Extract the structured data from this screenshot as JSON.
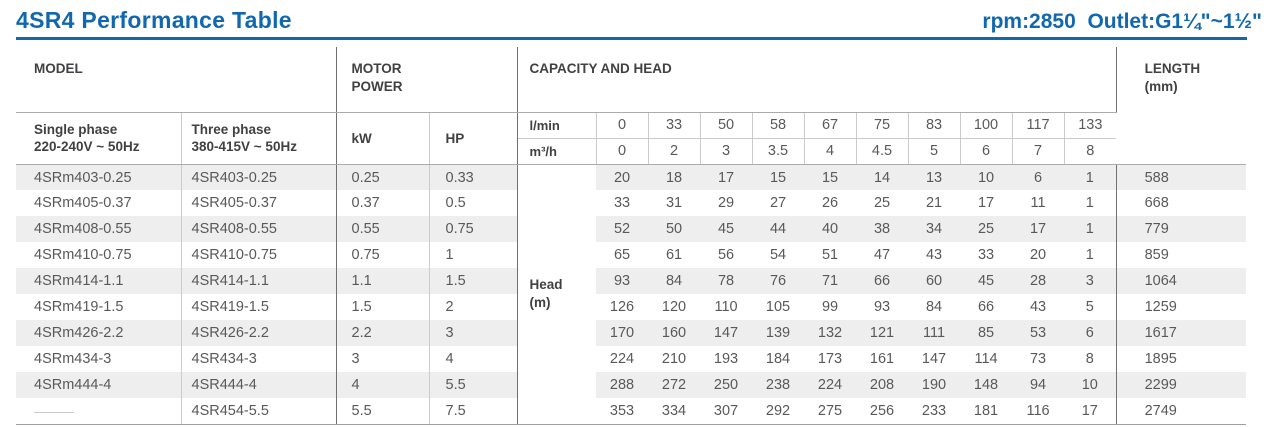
{
  "header": {
    "title": "4SR4 Performance Table",
    "right_text": "rpm:2850  Outlet:G1¼\"~1½\"",
    "accent_color": "#1168af"
  },
  "table": {
    "section_headers": {
      "model": "MODEL",
      "motor_power_line1": "MOTOR",
      "motor_power_line2": "POWER",
      "capacity_and_head": "CAPACITY AND HEAD",
      "length_line1": "LENGTH",
      "length_line2": "(mm)"
    },
    "column_headers": {
      "single_phase_line1": "Single phase",
      "single_phase_line2": "220-240V ~ 50Hz",
      "three_phase_line1": "Three phase",
      "three_phase_line2": "380-415V ~ 50Hz",
      "kw": "kW",
      "hp": "HP",
      "flow_lmin_label": "l/min",
      "flow_m3h_label": "m³/h",
      "head_label_line1": "Head",
      "head_label_line2": "(m)"
    },
    "flow_lmin": [
      "0",
      "33",
      "50",
      "58",
      "67",
      "75",
      "83",
      "100",
      "117",
      "133"
    ],
    "flow_m3h": [
      "0",
      "2",
      "3",
      "3.5",
      "4",
      "4.5",
      "5",
      "6",
      "7",
      "8"
    ],
    "rows": [
      {
        "single": "4SRm403-0.25",
        "three": "4SR403-0.25",
        "kw": "0.25",
        "hp": "0.33",
        "head": [
          "20",
          "18",
          "17",
          "15",
          "15",
          "14",
          "13",
          "10",
          "6",
          "1"
        ],
        "length": "588"
      },
      {
        "single": "4SRm405-0.37",
        "three": "4SR405-0.37",
        "kw": "0.37",
        "hp": "0.5",
        "head": [
          "33",
          "31",
          "29",
          "27",
          "26",
          "25",
          "21",
          "17",
          "11",
          "1"
        ],
        "length": "668"
      },
      {
        "single": "4SRm408-0.55",
        "three": "4SR408-0.55",
        "kw": "0.55",
        "hp": "0.75",
        "head": [
          "52",
          "50",
          "45",
          "44",
          "40",
          "38",
          "34",
          "25",
          "17",
          "1"
        ],
        "length": "779"
      },
      {
        "single": "4SRm410-0.75",
        "three": "4SR410-0.75",
        "kw": "0.75",
        "hp": "1",
        "head": [
          "65",
          "61",
          "56",
          "54",
          "51",
          "47",
          "43",
          "33",
          "20",
          "1"
        ],
        "length": "859"
      },
      {
        "single": "4SRm414-1.1",
        "three": "4SR414-1.1",
        "kw": "1.1",
        "hp": "1.5",
        "head": [
          "93",
          "84",
          "78",
          "76",
          "71",
          "66",
          "60",
          "45",
          "28",
          "3"
        ],
        "length": "1064"
      },
      {
        "single": "4SRm419-1.5",
        "three": "4SR419-1.5",
        "kw": "1.5",
        "hp": "2",
        "head": [
          "126",
          "120",
          "110",
          "105",
          "99",
          "93",
          "84",
          "66",
          "43",
          "5"
        ],
        "length": "1259"
      },
      {
        "single": "4SRm426-2.2",
        "three": "4SR426-2.2",
        "kw": "2.2",
        "hp": "3",
        "head": [
          "170",
          "160",
          "147",
          "139",
          "132",
          "121",
          "111",
          "85",
          "53",
          "6"
        ],
        "length": "1617"
      },
      {
        "single": "4SRm434-3",
        "three": "4SR434-3",
        "kw": "3",
        "hp": "4",
        "head": [
          "224",
          "210",
          "193",
          "184",
          "173",
          "161",
          "147",
          "114",
          "73",
          "8"
        ],
        "length": "1895"
      },
      {
        "single": "4SRm444-4",
        "three": "4SR444-4",
        "kw": "4",
        "hp": "5.5",
        "head": [
          "288",
          "272",
          "250",
          "238",
          "224",
          "208",
          "190",
          "148",
          "94",
          "10"
        ],
        "length": "2299"
      },
      {
        "single": "———",
        "three": "4SR454-5.5",
        "kw": "5.5",
        "hp": "7.5",
        "head": [
          "353",
          "334",
          "307",
          "292",
          "275",
          "256",
          "233",
          "181",
          "116",
          "17"
        ],
        "length": "2749"
      }
    ]
  }
}
